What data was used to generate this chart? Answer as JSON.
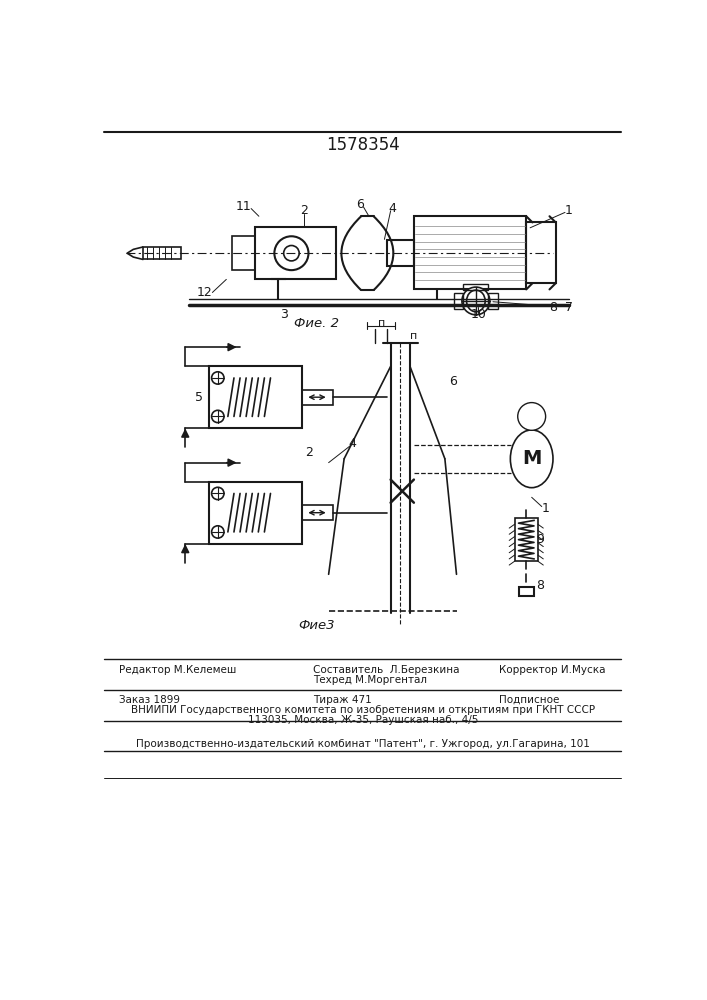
{
  "title": "1578354",
  "fig2_label": "Фие. 2",
  "fig3_label": "Фие3",
  "editor": "Редактор М.Келемеш",
  "author": "Составитель  Л.Березкина",
  "tech": "Техред М.Моргентал",
  "corrector": "Корректор И.Муска",
  "order": "Заказ 1899",
  "tirazh": "Тираж 471",
  "podpisnoe": "Подписное",
  "vnipi": "ВНИИПИ Государственного комитета по изобретениям и открытиям при ГКНТ СССР",
  "address": "113035, Москва, Ж-35, Раушская наб., 4/5",
  "patent": "Производственно-издательский комбинат \"Патент\", г. Ужгород, ул.Гагарина, 101",
  "bg_color": "#ffffff",
  "line_color": "#1a1a1a"
}
